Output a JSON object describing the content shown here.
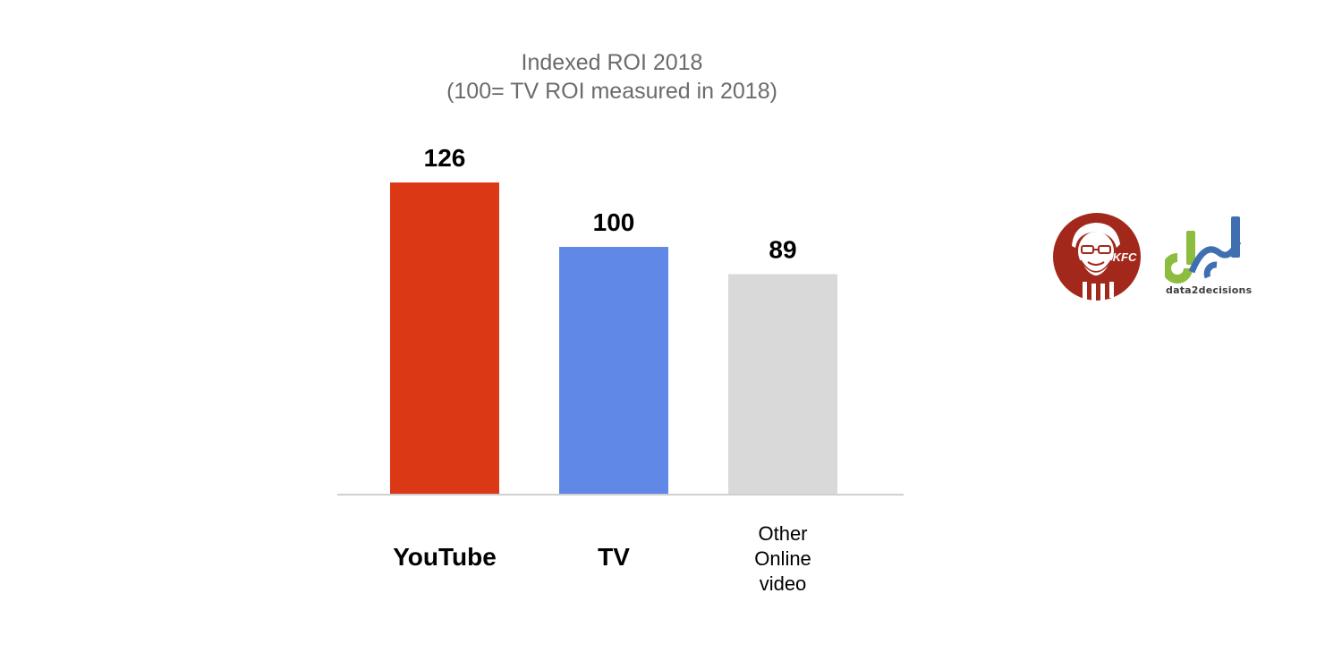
{
  "chart_data": {
    "type": "bar",
    "title": "Indexed ROI 2018",
    "subtitle": "(100= TV ROI measured in 2018)",
    "categories": [
      "YouTube",
      "TV",
      "Other Online video"
    ],
    "category_lines": [
      [
        "YouTube"
      ],
      [
        "TV"
      ],
      [
        "Other",
        "Online",
        "video"
      ]
    ],
    "category_bold": [
      true,
      true,
      false
    ],
    "values": [
      126,
      100,
      89
    ],
    "value_labels": [
      "126",
      "100",
      "89"
    ],
    "colors": [
      "#db3915",
      "#6088e6",
      "#d9d9d9"
    ],
    "ylim": [
      0,
      126
    ],
    "grid": false,
    "legend": "none",
    "xlabel": "",
    "ylabel": ""
  },
  "logos": {
    "kfc": {
      "text": "KFC",
      "color": "#a3281c"
    },
    "d2d": {
      "text": "data2decisions",
      "green": "#8dbd3f",
      "blue": "#3f6fb0"
    }
  }
}
